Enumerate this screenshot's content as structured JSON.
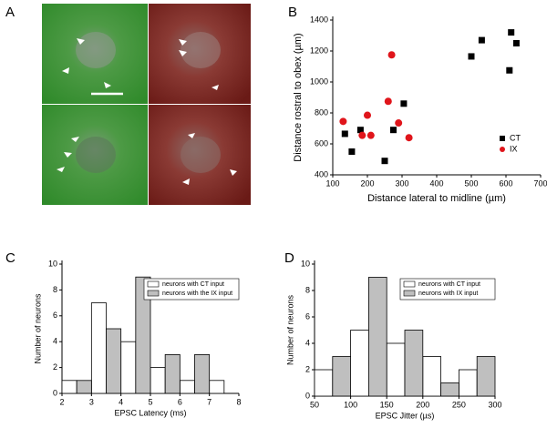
{
  "panel_labels": [
    "A",
    "B",
    "C",
    "D"
  ],
  "chart_data": [
    {
      "type": "scatter",
      "xlabel": "Distance lateral to midline (µm)",
      "ylabel": "Distance rostral to obex (µm)",
      "xlim": [
        100,
        700
      ],
      "xticks": [
        100,
        200,
        300,
        400,
        500,
        600,
        700
      ],
      "ylim": [
        400,
        1400
      ],
      "yticks": [
        400,
        600,
        800,
        1000,
        1200,
        1400
      ],
      "legend": "lower right",
      "series": [
        {
          "name": "CT",
          "color": "#000000",
          "marker": "square",
          "x": [
            135,
            155,
            180,
            250,
            275,
            305,
            500,
            530,
            610,
            615,
            630
          ],
          "y": [
            665,
            550,
            690,
            490,
            690,
            860,
            1165,
            1270,
            1075,
            1320,
            1250
          ]
        },
        {
          "name": "IX",
          "color": "#e0151b",
          "marker": "circle",
          "x": [
            130,
            185,
            200,
            210,
            260,
            270,
            290,
            320
          ],
          "y": [
            745,
            655,
            785,
            655,
            875,
            1175,
            735,
            640
          ]
        }
      ]
    },
    {
      "type": "histogram",
      "xlabel": "EPSC Latency (ms)",
      "ylabel": "Number of neurons",
      "bins": [
        2,
        2.5,
        3,
        3.5,
        4,
        4.5,
        5,
        5.5,
        6,
        6.5,
        7,
        7.5
      ],
      "xlim": [
        2,
        8
      ],
      "xticks": [
        2,
        3,
        4,
        5,
        6,
        7,
        8
      ],
      "ylim": [
        0,
        10
      ],
      "yticks": [
        0,
        2,
        4,
        6,
        8,
        10
      ],
      "legend": "upper right",
      "series": [
        {
          "name": "neurons with CT input",
          "color": "#ffffff",
          "values": [
            1,
            0,
            7,
            0,
            4,
            0,
            2,
            0,
            1,
            0,
            1
          ]
        },
        {
          "name": "neurons with the IX input",
          "color": "#bfbfbf",
          "values": [
            0,
            1,
            0,
            5,
            0,
            9,
            0,
            3,
            0,
            3,
            0
          ]
        }
      ]
    },
    {
      "type": "histogram",
      "xlabel": "EPSC Jitter (µs)",
      "ylabel": "Number of neurons",
      "bins": [
        50,
        75,
        100,
        125,
        150,
        175,
        200,
        225,
        250,
        275,
        300
      ],
      "xlim": [
        50,
        300
      ],
      "xticks": [
        50,
        100,
        150,
        200,
        250,
        300
      ],
      "ylim": [
        0,
        10
      ],
      "yticks": [
        0,
        2,
        4,
        6,
        8,
        10
      ],
      "legend": "upper right",
      "series": [
        {
          "name": "neurons with CT input",
          "color": "#ffffff",
          "values": [
            2,
            0,
            5,
            0,
            4,
            0,
            3,
            0,
            2,
            0
          ]
        },
        {
          "name": "neurons with IX input",
          "color": "#bfbfbf",
          "values": [
            0,
            3,
            0,
            9,
            0,
            5,
            0,
            1,
            0,
            3
          ]
        }
      ]
    }
  ]
}
